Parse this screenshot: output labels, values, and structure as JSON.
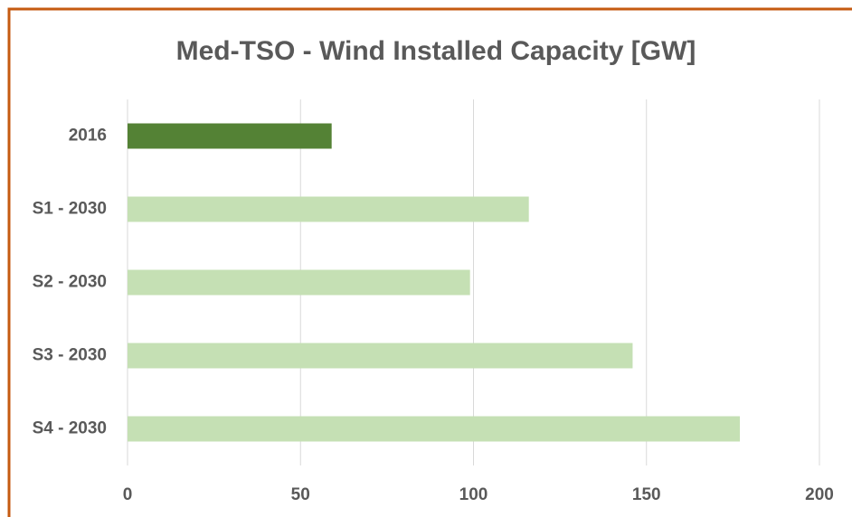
{
  "chart_data": {
    "type": "bar",
    "orientation": "horizontal",
    "title": "Med-TSO - Wind Installed Capacity [GW]",
    "categories": [
      "2016",
      "S1 - 2030",
      "S2 - 2030",
      "S3 - 2030",
      "S4 - 2030"
    ],
    "values": [
      59,
      116,
      99,
      146,
      177
    ],
    "colors": [
      "#548235",
      "#c5e0b4",
      "#c5e0b4",
      "#c5e0b4",
      "#c5e0b4"
    ],
    "xlim": [
      0,
      200
    ],
    "xticks": [
      0,
      50,
      100,
      150,
      200
    ],
    "grid": true
  }
}
